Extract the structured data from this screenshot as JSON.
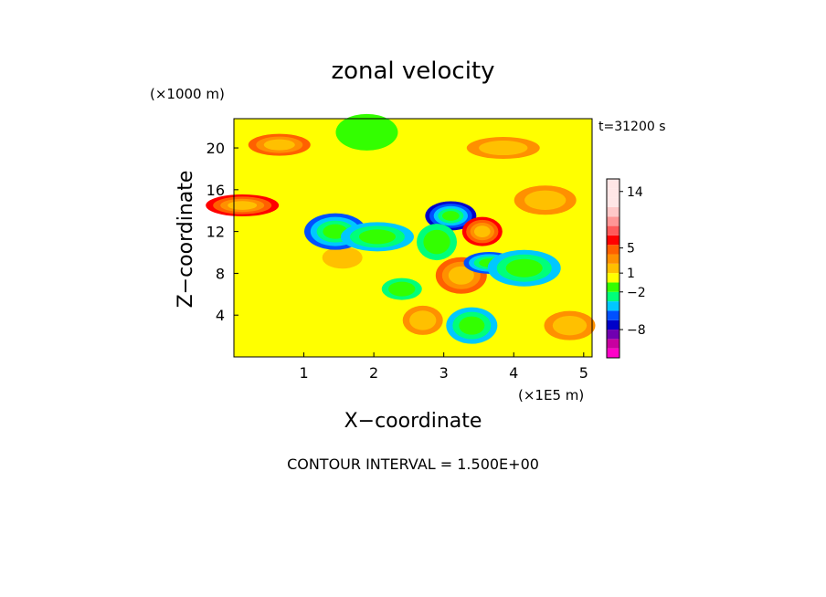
{
  "chart_data": {
    "type": "heatmap",
    "title": "zonal velocity",
    "y_scale_note": "(×1000 m)",
    "time_label": "t=31200 s",
    "xlabel": "X−coordinate",
    "x_scale_note": "(×1E5 m)",
    "ylabel": "Z−coordinate",
    "footer": "CONTOUR INTERVAL = 1.500E+00",
    "xlim": [
      0,
      5.12
    ],
    "ylim": [
      0,
      22.8
    ],
    "x_ticks": [
      1,
      2,
      3,
      4,
      5
    ],
    "x_tick_labels": [
      "1",
      "2",
      "3",
      "4",
      "5"
    ],
    "y_ticks": [
      4,
      8,
      12,
      16,
      20
    ],
    "y_tick_labels": [
      "4",
      "8",
      "12",
      "16",
      "20"
    ],
    "grid": false,
    "colorbar": {
      "colors": [
        "#ff00c8",
        "#c800a0",
        "#7000b0",
        "#0000c8",
        "#0050ff",
        "#00c8ff",
        "#00ff7a",
        "#33ff00",
        "#ffff00",
        "#ffc000",
        "#ff9000",
        "#ff6000",
        "#ff0000",
        "#ff5a5a",
        "#ff9696",
        "#ffc8c8",
        "#ffe6e6"
      ],
      "level_values": [
        -12.5,
        -11,
        -9.5,
        -8,
        -6.5,
        -5,
        -3.5,
        -2,
        -0.5,
        1,
        2.5,
        4,
        5.5,
        7,
        8.5,
        10,
        11.5,
        13,
        14.5,
        16
      ],
      "labeled_values": [
        -8,
        -2,
        1,
        5,
        14
      ],
      "labels": [
        "−8",
        "−2",
        "1",
        "5",
        "14"
      ]
    },
    "features": [
      {
        "x": 1.55,
        "z": 9.5,
        "value": 0.8
      },
      {
        "x": 3.1,
        "z": 13.5,
        "value": -7.5
      },
      {
        "x": 1.45,
        "z": 12.0,
        "value": -6.5
      },
      {
        "x": 0.12,
        "z": 14.5,
        "value": 6.0
      },
      {
        "x": 3.55,
        "z": 12.0,
        "value": 6.5
      },
      {
        "x": 3.25,
        "z": 7.8,
        "value": 5.0
      },
      {
        "x": 0.65,
        "z": 20.3,
        "value": 4.0
      },
      {
        "x": 2.05,
        "z": 11.5,
        "value": -4.0
      },
      {
        "x": 2.9,
        "z": 11.0,
        "value": -2.5
      },
      {
        "x": 3.65,
        "z": 9.0,
        "value": -5.5
      },
      {
        "x": 4.45,
        "z": 15.0,
        "value": 3.0
      },
      {
        "x": 4.15,
        "z": 8.5,
        "value": -4.0
      },
      {
        "x": 2.4,
        "z": 6.5,
        "value": -3.0
      },
      {
        "x": 4.8,
        "z": 3.0,
        "value": 2.5
      },
      {
        "x": 1.9,
        "z": 21.5,
        "value": -1.5
      },
      {
        "x": 3.85,
        "z": 20.0,
        "value": 2.5
      },
      {
        "x": 2.7,
        "z": 3.5,
        "value": 3.5
      },
      {
        "x": 3.4,
        "z": 3.0,
        "value": -4.5
      }
    ]
  }
}
